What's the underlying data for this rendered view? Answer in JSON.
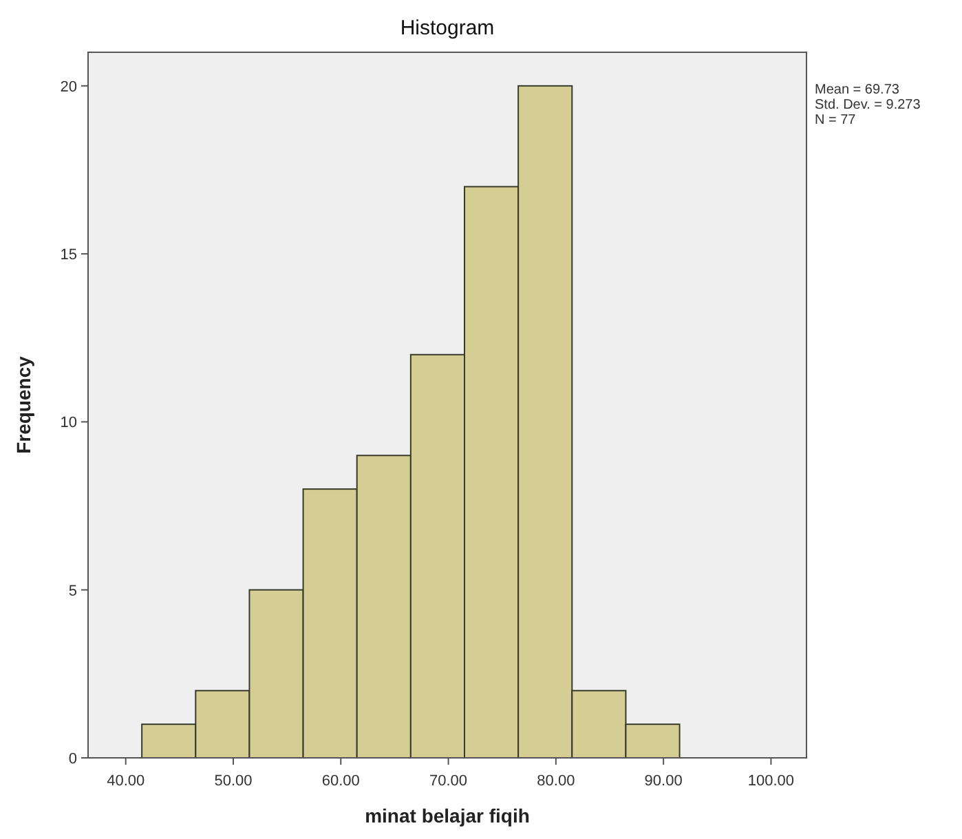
{
  "chart_data": {
    "type": "histogram",
    "title": "Histogram",
    "xlabel": "minat belajar fiqih",
    "ylabel": "Frequency",
    "bins": [
      41.5,
      46.5,
      51.5,
      56.5,
      61.5,
      66.5,
      71.5,
      76.5,
      81.5,
      86.5,
      91.5
    ],
    "values": [
      1,
      2,
      5,
      8,
      9,
      12,
      17,
      20,
      2,
      1
    ],
    "color": "#d4cd94",
    "xlim": [
      36.5,
      103.3
    ],
    "xticks": [
      {
        "value": 40,
        "label": "40.00"
      },
      {
        "value": 50,
        "label": "50.00"
      },
      {
        "value": 60,
        "label": "60.00"
      },
      {
        "value": 70,
        "label": "70.00"
      },
      {
        "value": 80,
        "label": "80.00"
      },
      {
        "value": 90,
        "label": "90.00"
      },
      {
        "value": 100,
        "label": "100.00"
      }
    ],
    "ylim": [
      0,
      21
    ],
    "yticks": [
      0,
      5,
      10,
      15,
      20
    ],
    "annotations": [
      "Mean = 69.73",
      "Std. Dev. = 9.273",
      "N = 77"
    ]
  }
}
